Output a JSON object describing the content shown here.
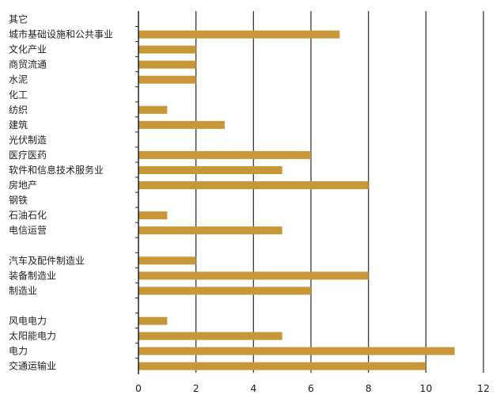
{
  "chart_data": {
    "type": "bar",
    "orientation": "horizontal",
    "title": "",
    "xlabel": "",
    "ylabel": "",
    "xlim": [
      0,
      12
    ],
    "x_ticks": [
      "0",
      "2",
      "4",
      "6",
      "8",
      "10",
      "12"
    ],
    "grid": "vertical",
    "bar_color": "#C8973A",
    "categories": [
      "其它",
      "城市基础设施和公共事业",
      "文化产业",
      "商贸流通",
      "水泥",
      "化工",
      "纺织",
      "建筑",
      "光伏制造",
      "医疗医药",
      "软件和信息技术服务业",
      "房地产",
      "钢铁",
      "石油石化",
      "电信运营",
      "",
      "汽车及配件制造业",
      "装备制造业",
      "制造业",
      "",
      "风电电力",
      "太阳能电力",
      "电力",
      "交通运输业"
    ],
    "values": [
      0,
      7,
      2,
      2,
      2,
      0,
      1,
      3,
      0,
      6,
      5,
      8,
      0,
      1,
      5,
      0,
      2,
      8,
      6,
      0,
      1,
      5,
      11,
      10
    ]
  }
}
